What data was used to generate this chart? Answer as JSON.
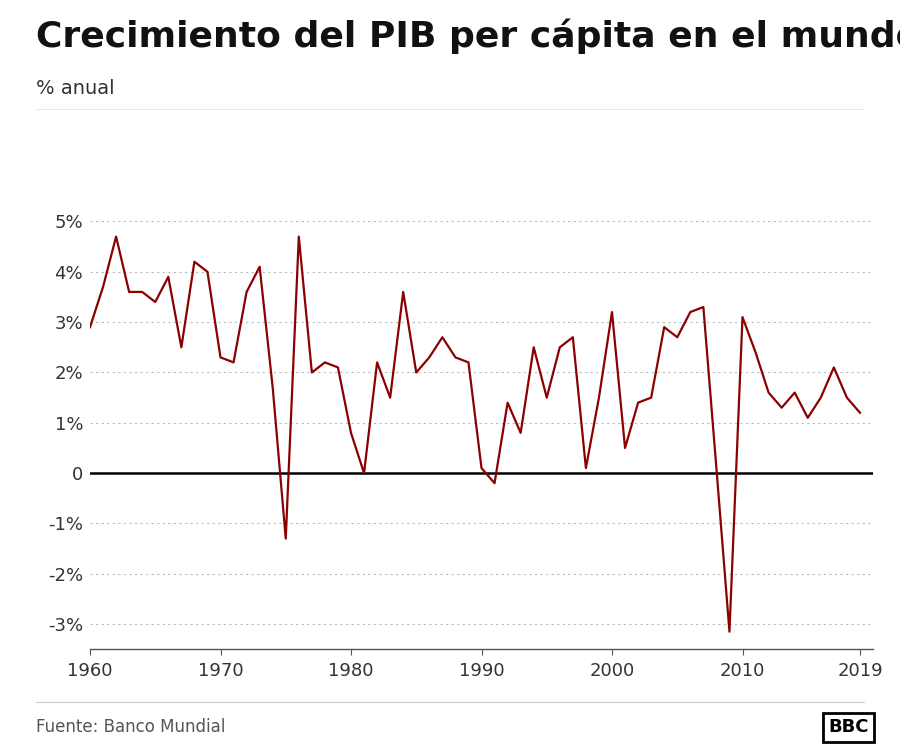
{
  "title": "Crecimiento del PIB per cápita en el mundo",
  "subtitle": "% anual",
  "source": "Fuente: Banco Mundial",
  "line_color": "#8B0000",
  "background_color": "#ffffff",
  "zero_line_color": "#000000",
  "grid_color": "#bbbbbb",
  "years": [
    1960,
    1961,
    1962,
    1963,
    1964,
    1965,
    1966,
    1967,
    1968,
    1969,
    1970,
    1971,
    1972,
    1973,
    1974,
    1975,
    1976,
    1977,
    1978,
    1979,
    1980,
    1981,
    1982,
    1983,
    1984,
    1985,
    1986,
    1987,
    1988,
    1989,
    1990,
    1991,
    1992,
    1993,
    1994,
    1995,
    1996,
    1997,
    1998,
    1999,
    2000,
    2001,
    2002,
    2003,
    2004,
    2005,
    2006,
    2007,
    2008,
    2009,
    2010,
    2011,
    2012,
    2013,
    2014,
    2015,
    2016,
    2017,
    2018,
    2019
  ],
  "values": [
    2.9,
    3.7,
    4.7,
    3.6,
    3.6,
    3.4,
    3.9,
    2.5,
    4.2,
    4.0,
    2.3,
    2.2,
    3.6,
    4.1,
    1.7,
    -1.3,
    4.7,
    2.0,
    2.2,
    2.1,
    0.8,
    0.0,
    2.2,
    1.5,
    3.6,
    2.0,
    2.3,
    2.7,
    2.3,
    2.2,
    0.1,
    -0.2,
    1.4,
    0.8,
    2.5,
    1.5,
    2.5,
    2.7,
    0.1,
    1.5,
    3.2,
    0.5,
    1.4,
    1.5,
    2.9,
    2.7,
    3.2,
    3.3,
    0.1,
    -3.15,
    3.1,
    2.4,
    1.6,
    1.3,
    1.6,
    1.1,
    1.5,
    2.1,
    1.5,
    1.2
  ],
  "ylim": [
    -3.5,
    5.5
  ],
  "yticks": [
    -3,
    -2,
    -1,
    0,
    1,
    2,
    3,
    4,
    5
  ],
  "xticks": [
    1960,
    1970,
    1980,
    1990,
    2000,
    2010,
    2019
  ],
  "xlim_left": 1960,
  "xlim_right": 2020,
  "title_fontsize": 26,
  "subtitle_fontsize": 14,
  "tick_fontsize": 13,
  "source_fontsize": 12,
  "line_width": 1.6
}
